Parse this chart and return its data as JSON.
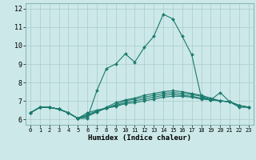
{
  "xlabel": "Humidex (Indice chaleur)",
  "background_color": "#cce8e8",
  "grid_color": "#aacccc",
  "line_color": "#1a7a6e",
  "xlim": [
    -0.5,
    23.5
  ],
  "ylim": [
    5.7,
    12.3
  ],
  "xticks": [
    0,
    1,
    2,
    3,
    4,
    5,
    6,
    7,
    8,
    9,
    10,
    11,
    12,
    13,
    14,
    15,
    16,
    17,
    18,
    19,
    20,
    21,
    22,
    23
  ],
  "yticks": [
    6,
    7,
    8,
    9,
    10,
    11,
    12
  ],
  "lines": [
    {
      "x": [
        0,
        1,
        2,
        3,
        4,
        5,
        6,
        7,
        8,
        9,
        10,
        11,
        12,
        13,
        14,
        15,
        16,
        17,
        18,
        19,
        20,
        21,
        22,
        23
      ],
      "y": [
        6.35,
        6.65,
        6.65,
        6.55,
        6.35,
        6.05,
        6.05,
        7.55,
        8.75,
        9.0,
        9.55,
        9.1,
        9.9,
        10.5,
        11.7,
        11.45,
        10.5,
        9.5,
        7.2,
        7.05,
        7.45,
        6.95,
        6.65,
        6.65
      ]
    },
    {
      "x": [
        0,
        1,
        2,
        3,
        4,
        5,
        6,
        7,
        8,
        9,
        10,
        11,
        12,
        13,
        14,
        15,
        16,
        17,
        18,
        19,
        20,
        21,
        22,
        23
      ],
      "y": [
        6.35,
        6.65,
        6.65,
        6.55,
        6.35,
        6.05,
        6.35,
        6.5,
        6.6,
        6.7,
        6.85,
        6.9,
        7.0,
        7.1,
        7.2,
        7.25,
        7.25,
        7.2,
        7.1,
        7.05,
        7.0,
        6.95,
        6.75,
        6.65
      ]
    },
    {
      "x": [
        0,
        1,
        2,
        3,
        4,
        5,
        6,
        7,
        8,
        9,
        10,
        11,
        12,
        13,
        14,
        15,
        16,
        17,
        18,
        19,
        20,
        21,
        22,
        23
      ],
      "y": [
        6.35,
        6.65,
        6.65,
        6.55,
        6.35,
        6.05,
        6.25,
        6.45,
        6.6,
        6.75,
        6.9,
        7.0,
        7.1,
        7.2,
        7.3,
        7.35,
        7.3,
        7.25,
        7.15,
        7.05,
        7.0,
        6.95,
        6.75,
        6.65
      ]
    },
    {
      "x": [
        0,
        1,
        2,
        3,
        4,
        5,
        6,
        7,
        8,
        9,
        10,
        11,
        12,
        13,
        14,
        15,
        16,
        17,
        18,
        19,
        20,
        21,
        22,
        23
      ],
      "y": [
        6.35,
        6.65,
        6.65,
        6.55,
        6.35,
        6.05,
        6.2,
        6.4,
        6.6,
        6.8,
        7.0,
        7.1,
        7.2,
        7.3,
        7.4,
        7.45,
        7.4,
        7.35,
        7.25,
        7.1,
        7.0,
        6.95,
        6.75,
        6.65
      ]
    },
    {
      "x": [
        0,
        1,
        2,
        3,
        4,
        5,
        6,
        7,
        8,
        9,
        10,
        11,
        12,
        13,
        14,
        15,
        16,
        17,
        18,
        19,
        20,
        21,
        22,
        23
      ],
      "y": [
        6.35,
        6.65,
        6.65,
        6.55,
        6.35,
        6.05,
        6.15,
        6.4,
        6.65,
        6.9,
        7.05,
        7.15,
        7.3,
        7.4,
        7.5,
        7.55,
        7.5,
        7.4,
        7.3,
        7.15,
        7.0,
        6.95,
        6.75,
        6.65
      ]
    }
  ]
}
